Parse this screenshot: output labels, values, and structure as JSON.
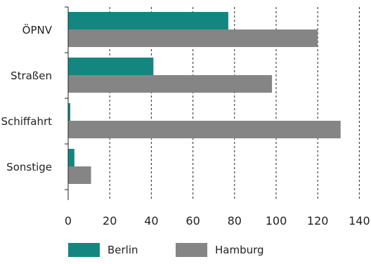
{
  "chart_data": {
    "type": "bar",
    "orientation": "horizontal",
    "categories": [
      "ÖPNV",
      "Straßen",
      "Schiffahrt",
      "Sonstige"
    ],
    "series": [
      {
        "name": "Berlin",
        "values": [
          77,
          41,
          1,
          3
        ],
        "color": "#13877f"
      },
      {
        "name": "Hamburg",
        "values": [
          120,
          98,
          131,
          11
        ],
        "color": "#858585"
      }
    ],
    "xticks": [
      0,
      20,
      40,
      60,
      80,
      100,
      120,
      140
    ],
    "xlim": [
      0,
      140
    ],
    "grid": "vertical dashed",
    "legend_position": "bottom"
  }
}
